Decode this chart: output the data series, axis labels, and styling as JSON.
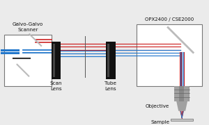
{
  "bg_color": "#ebebeb",
  "title_galvo": "Galvo-Galvo\nScanner",
  "title_opx": "OPX2400 / CSE2000",
  "label_scan": "Scan\nLens",
  "label_tube": "Tube\nLens",
  "label_objective": "Objective",
  "label_sample": "Sample",
  "red": "#cc2222",
  "blue": "#2277cc",
  "box_color": "#111111",
  "mirror_color": "#bbbbbb",
  "text_color": "#111111",
  "fig_w": 3.0,
  "fig_h": 1.8
}
